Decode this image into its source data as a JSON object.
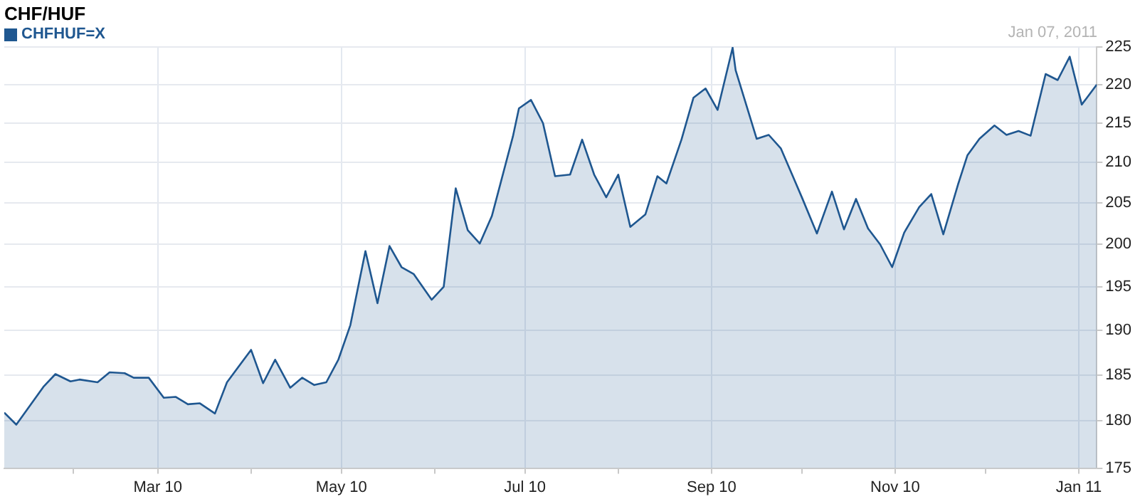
{
  "chart_data": {
    "type": "area",
    "title": "CHF/HUF",
    "annotations": [
      "Jan 07, 2011"
    ],
    "x": [
      "2010-01-09",
      "2010-01-13",
      "2010-01-22",
      "2010-01-26",
      "2010-01-31",
      "2010-02-03",
      "2010-02-09",
      "2010-02-13",
      "2010-02-18",
      "2010-02-21",
      "2010-02-26",
      "2010-03-03",
      "2010-03-07",
      "2010-03-11",
      "2010-03-15",
      "2010-03-20",
      "2010-03-24",
      "2010-04-01",
      "2010-04-05",
      "2010-04-09",
      "2010-04-14",
      "2010-04-18",
      "2010-04-22",
      "2010-04-26",
      "2010-04-30",
      "2010-05-04",
      "2010-05-09",
      "2010-05-13",
      "2010-05-17",
      "2010-05-21",
      "2010-05-25",
      "2010-05-31",
      "2010-06-04",
      "2010-06-08",
      "2010-06-12",
      "2010-06-16",
      "2010-06-20",
      "2010-06-27",
      "2010-06-29",
      "2010-07-03",
      "2010-07-07",
      "2010-07-11",
      "2010-07-16",
      "2010-07-20",
      "2010-07-24",
      "2010-07-28",
      "2010-08-01",
      "2010-08-05",
      "2010-08-10",
      "2010-08-14",
      "2010-08-17",
      "2010-08-22",
      "2010-08-26",
      "2010-08-30",
      "2010-09-03",
      "2010-09-08",
      "2010-09-09",
      "2010-09-16",
      "2010-09-20",
      "2010-09-24",
      "2010-09-28",
      "2010-10-01",
      "2010-10-06",
      "2010-10-11",
      "2010-10-15",
      "2010-10-19",
      "2010-10-23",
      "2010-10-27",
      "2010-10-31",
      "2010-11-04",
      "2010-11-09",
      "2010-11-13",
      "2010-11-17",
      "2010-11-22",
      "2010-11-25",
      "2010-11-29",
      "2010-12-04",
      "2010-12-08",
      "2010-12-12",
      "2010-12-16",
      "2010-12-21",
      "2010-12-25",
      "2010-12-29",
      "2011-01-02",
      "2011-01-07"
    ],
    "series": [
      {
        "name": "CHFHUF=X",
        "color": "#1f5790",
        "values": [
          180.9,
          179.6,
          183.7,
          185.1,
          184.3,
          184.5,
          184.2,
          185.3,
          185.2,
          184.7,
          184.7,
          182.5,
          182.6,
          181.8,
          181.9,
          180.8,
          184.2,
          187.8,
          184.1,
          186.7,
          183.6,
          184.7,
          183.9,
          184.2,
          186.7,
          190.6,
          199.2,
          193.1,
          199.8,
          197.3,
          196.5,
          193.5,
          195.0,
          206.8,
          201.7,
          200.1,
          203.4,
          213.3,
          216.9,
          218.0,
          215.0,
          208.3,
          208.5,
          212.9,
          208.5,
          205.7,
          208.5,
          202.1,
          203.6,
          208.3,
          207.4,
          212.9,
          218.3,
          219.5,
          216.7,
          224.9,
          221.9,
          213.0,
          213.5,
          211.8,
          208.3,
          205.7,
          201.3,
          206.4,
          201.8,
          205.5,
          201.9,
          200.0,
          197.3,
          201.4,
          204.5,
          206.1,
          201.2,
          207.4,
          210.9,
          213.0,
          214.7,
          213.5,
          214.0,
          213.4,
          221.4,
          220.6,
          223.7,
          217.4,
          220.0
        ]
      }
    ],
    "xlim": [
      "2010-01-09",
      "2011-01-07"
    ],
    "xticks": [
      {
        "value": "2010-02-01",
        "label": null
      },
      {
        "value": "2010-03-01",
        "label": "Mar 10"
      },
      {
        "value": "2010-04-01",
        "label": null
      },
      {
        "value": "2010-05-01",
        "label": "May 10"
      },
      {
        "value": "2010-06-01",
        "label": null
      },
      {
        "value": "2010-07-01",
        "label": "Jul 10"
      },
      {
        "value": "2010-08-01",
        "label": null
      },
      {
        "value": "2010-09-01",
        "label": "Sep 10"
      },
      {
        "value": "2010-10-01",
        "label": null
      },
      {
        "value": "2010-11-01",
        "label": "Nov 10"
      },
      {
        "value": "2010-12-01",
        "label": null
      },
      {
        "value": "2011-01-01",
        "label": "Jan 11"
      }
    ],
    "ylim": [
      175,
      225
    ],
    "yticks": [
      175,
      180,
      185,
      190,
      195,
      200,
      205,
      210,
      215,
      220,
      225
    ],
    "log": "y",
    "grid": true,
    "legend": "top left",
    "marker": "none"
  }
}
